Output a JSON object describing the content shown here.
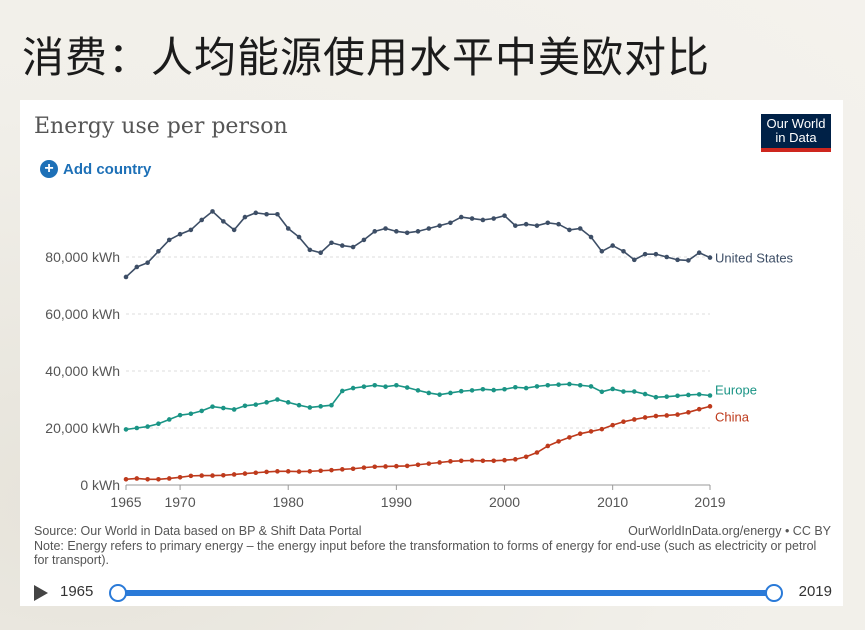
{
  "slide_title": "消费：人均能源使用水平中美欧对比",
  "chart_data": {
    "type": "line",
    "title": "Energy use per person",
    "xlabel": "",
    "ylabel": "",
    "xlim": [
      1965,
      2019
    ],
    "ylim": [
      0,
      100000
    ],
    "x_ticks": [
      1965,
      1970,
      1980,
      1990,
      2000,
      2010,
      2019
    ],
    "y_ticks": [
      {
        "value": 0,
        "label": "0 kWh"
      },
      {
        "value": 20000,
        "label": "20,000 kWh"
      },
      {
        "value": 40000,
        "label": "40,000 kWh"
      },
      {
        "value": 60000,
        "label": "60,000 kWh"
      },
      {
        "value": 80000,
        "label": "80,000 kWh"
      }
    ],
    "grid": "horizontal-dashed",
    "x": [
      1965,
      1966,
      1967,
      1968,
      1969,
      1970,
      1971,
      1972,
      1973,
      1974,
      1975,
      1976,
      1977,
      1978,
      1979,
      1980,
      1981,
      1982,
      1983,
      1984,
      1985,
      1986,
      1987,
      1988,
      1989,
      1990,
      1991,
      1992,
      1993,
      1994,
      1995,
      1996,
      1997,
      1998,
      1999,
      2000,
      2001,
      2002,
      2003,
      2004,
      2005,
      2006,
      2007,
      2008,
      2009,
      2010,
      2011,
      2012,
      2013,
      2014,
      2015,
      2016,
      2017,
      2018,
      2019
    ],
    "series": [
      {
        "name": "United States",
        "color": "#3d4e66",
        "values": [
          73000,
          76500,
          78000,
          82000,
          86000,
          88000,
          89500,
          93000,
          96000,
          92500,
          89500,
          94000,
          95500,
          95000,
          95000,
          90000,
          87000,
          82500,
          81500,
          85000,
          84000,
          83500,
          86000,
          89000,
          90000,
          89000,
          88500,
          89000,
          90000,
          91000,
          92000,
          94000,
          93500,
          93000,
          93500,
          94500,
          91000,
          91500,
          91000,
          92000,
          91500,
          89500,
          90000,
          87000,
          82000,
          84000,
          82000,
          79000,
          81000,
          81000,
          80000,
          79000,
          78800,
          81500,
          79800
        ]
      },
      {
        "name": "Europe",
        "color": "#1a9485",
        "values": [
          19500,
          20000,
          20500,
          21500,
          23000,
          24500,
          25000,
          26000,
          27500,
          27000,
          26500,
          27800,
          28200,
          29000,
          30000,
          29000,
          28000,
          27200,
          27600,
          28000,
          33000,
          34000,
          34500,
          35000,
          34500,
          35000,
          34200,
          33200,
          32300,
          31700,
          32300,
          32900,
          33200,
          33600,
          33300,
          33600,
          34300,
          34000,
          34600,
          35000,
          35200,
          35400,
          35000,
          34600,
          32700,
          33700,
          32800,
          32800,
          31900,
          30800,
          31000,
          31300,
          31600,
          31800,
          31400
        ]
      },
      {
        "name": "China",
        "color": "#be3a1c",
        "values": [
          2000,
          2300,
          2000,
          2000,
          2300,
          2700,
          3200,
          3300,
          3300,
          3400,
          3700,
          4000,
          4300,
          4600,
          4800,
          4800,
          4700,
          4800,
          5000,
          5200,
          5500,
          5700,
          6100,
          6400,
          6500,
          6600,
          6700,
          7100,
          7500,
          7900,
          8300,
          8500,
          8600,
          8500,
          8500,
          8700,
          9000,
          9900,
          11400,
          13700,
          15300,
          16700,
          18000,
          18800,
          19600,
          21000,
          22200,
          23000,
          23700,
          24200,
          24400,
          24700,
          25500,
          26600,
          27600
        ]
      }
    ],
    "legend": "inline-end-labels"
  },
  "add_country_label": "Add country",
  "logo": {
    "line1": "Our World",
    "line2": "in Data"
  },
  "source_text": "Source: Our World in Data based on BP & Shift Data Portal",
  "license_text": "OurWorldInData.org/energy • CC BY",
  "note_text": "Note: Energy refers to primary energy – the energy input before the transformation to forms of energy for end-use (such as electricity or petrol for transport).",
  "timeline": {
    "start": "1965",
    "end": "2019"
  }
}
